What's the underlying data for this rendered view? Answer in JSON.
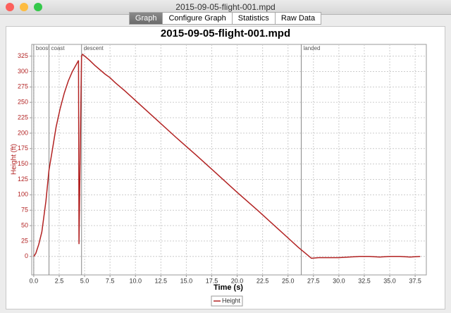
{
  "window": {
    "title": "2015-09-05-flight-001.mpd"
  },
  "tabs": [
    "Graph",
    "Configure Graph",
    "Statistics",
    "Raw Data"
  ],
  "chart_data": {
    "type": "line",
    "title": "2015-09-05-flight-001.mpd",
    "x_label": "Time (s)",
    "y_label": "Height (ft)",
    "xlim": [
      -0.2,
      38.6
    ],
    "ylim": [
      -30,
      344
    ],
    "xticks": [
      {
        "value": 0,
        "label": "0.0"
      },
      2.5,
      {
        "value": 5,
        "label": "5.0"
      },
      7.5,
      {
        "value": 10,
        "label": "10.0"
      },
      12.5,
      {
        "value": 15,
        "label": "15.0"
      },
      17.5,
      {
        "value": 20,
        "label": "20.0"
      },
      22.5,
      {
        "value": 25,
        "label": "25.0"
      },
      27.5,
      {
        "value": 30,
        "label": "30.0"
      },
      32.5,
      {
        "value": 35,
        "label": "35.0"
      },
      37.5
    ],
    "yticks": [
      0,
      25,
      50,
      75,
      100,
      125,
      150,
      175,
      200,
      225,
      250,
      275,
      300,
      325
    ],
    "grid": true,
    "annotations": [
      {
        "x": 0,
        "label": "boost"
      },
      {
        "x": 1.5,
        "label": "coast"
      },
      {
        "x": 4.7,
        "label": "descent"
      },
      {
        "x": 26.3,
        "label": "landed"
      }
    ],
    "x": [
      0,
      0.2,
      0.5,
      0.8,
      1.2,
      1.5,
      1.8,
      2.2,
      2.6,
      3.0,
      3.4,
      3.8,
      4.2,
      4.4,
      4.45,
      4.7,
      4.8,
      5.0,
      5.5,
      6.0,
      7.0,
      7.5,
      8.0,
      9.0,
      10.0,
      12.0,
      14.0,
      16.0,
      18.0,
      20.0,
      22.0,
      24.0,
      25.0,
      26.0,
      26.8,
      27.3,
      28.0,
      30.0,
      31.0,
      32.0,
      33.0,
      34.0,
      35.0,
      36.0,
      37.0,
      38.0
    ],
    "series": [
      {
        "name": "Height",
        "color": "#b22222",
        "values": [
          0,
          5,
          20,
          40,
          90,
          140,
          170,
          210,
          240,
          265,
          285,
          300,
          312,
          318,
          20,
          325,
          328,
          325,
          318,
          310,
          296,
          290,
          282,
          268,
          253,
          223,
          193,
          164,
          134,
          104,
          75,
          45,
          30,
          15,
          4,
          -3,
          -2,
          -2,
          -1,
          0,
          0,
          -1,
          0,
          0,
          -1,
          0
        ]
      }
    ]
  }
}
